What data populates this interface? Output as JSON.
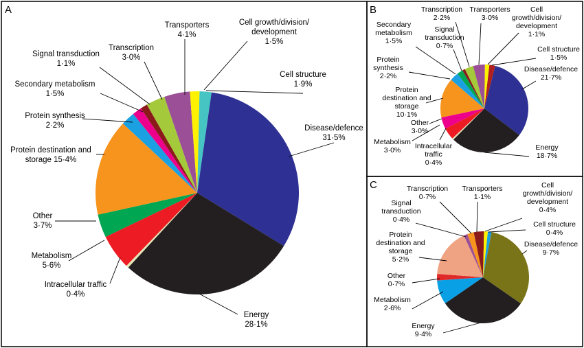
{
  "chart_data": [
    {
      "panel": "A",
      "type": "pie",
      "slices": [
        {
          "label": "Cell structure",
          "percent": "1·9%",
          "value": 1.9,
          "color": "#46c4c4",
          "text": [
            "Cell structure",
            "1·9%"
          ]
        },
        {
          "label": "Disease/defence",
          "percent": "31·5%",
          "value": 31.5,
          "color": "#2e3193",
          "text": [
            "Disease/defence",
            "31·5%"
          ]
        },
        {
          "label": "Energy",
          "percent": "28·1%",
          "value": 28.1,
          "color": "#231f20",
          "text": [
            "Energy",
            "28·1%"
          ]
        },
        {
          "label": "Intracellular traffic",
          "percent": "0·4%",
          "value": 0.4,
          "color": "#e4e6b5",
          "text": [
            "Intracellular traffic",
            "0·4%"
          ]
        },
        {
          "label": "Metabolism",
          "percent": "5·6%",
          "value": 5.6,
          "color": "#ed1c24",
          "text": [
            "Metabolism",
            "5·6%"
          ]
        },
        {
          "label": "Other",
          "percent": "3·7%",
          "value": 3.7,
          "color": "#00a651",
          "text": [
            "Other",
            "3·7%"
          ]
        },
        {
          "label": "Protein destination and storage",
          "percent": "15·4%",
          "value": 15.4,
          "color": "#f7941d",
          "text": [
            "Protein destination and",
            "storage 15·4%"
          ]
        },
        {
          "label": "Protein synthesis",
          "percent": "2·2%",
          "value": 2.2,
          "color": "#1ba0e2",
          "text": [
            "Protein synthesis",
            "2·2%"
          ]
        },
        {
          "label": "Secondary metabolism",
          "percent": "1·5%",
          "value": 1.5,
          "color": "#ec008c",
          "text": [
            "Secondary metabolism",
            "1·5%"
          ]
        },
        {
          "label": "Signal transduction",
          "percent": "1·1%",
          "value": 1.1,
          "color": "#8b1a1a",
          "text": [
            "Signal transduction",
            "1·1%"
          ]
        },
        {
          "label": "Transcription",
          "percent": "3·0%",
          "value": 3.0,
          "color": "#a4c93a",
          "text": [
            "Transcription",
            "3·0%"
          ]
        },
        {
          "label": "Transporters",
          "percent": "4·1%",
          "value": 4.1,
          "color": "#9b4f96",
          "text": [
            "Transporters",
            "4·1%"
          ]
        },
        {
          "label": "Cell growth/division/development",
          "percent": "1·5%",
          "value": 1.5,
          "color": "#fff200",
          "text": [
            "Cell growth/division/",
            "development",
            "1·5%"
          ]
        }
      ]
    },
    {
      "panel": "B",
      "type": "pie",
      "slices": [
        {
          "label": "Cell structure",
          "percent": "1·5%",
          "value": 1.5,
          "color": "#b02020",
          "text": [
            "Cell structure",
            "1·5%"
          ]
        },
        {
          "label": "Disease/defence",
          "percent": "21·7%",
          "value": 21.7,
          "color": "#2e3193",
          "text": [
            "Disease/defence",
            "21·7%"
          ]
        },
        {
          "label": "Energy",
          "percent": "18·7%",
          "value": 18.7,
          "color": "#231f20",
          "text": [
            "Energy",
            "18·7%"
          ]
        },
        {
          "label": "Intracellular traffic",
          "percent": "0·4%",
          "value": 0.4,
          "color": "#e4e6b5",
          "text": [
            "Intracellular",
            "traffic",
            "0·4%"
          ]
        },
        {
          "label": "Metabolism",
          "percent": "3·0%",
          "value": 3.0,
          "color": "#ed1c24",
          "text": [
            "Metabolism",
            "3·0%"
          ]
        },
        {
          "label": "Other",
          "percent": "3·0%",
          "value": 3.0,
          "color": "#ec008c",
          "text": [
            "Other",
            "3·0%"
          ]
        },
        {
          "label": "Protein destination and storage",
          "percent": "10·1%",
          "value": 10.1,
          "color": "#f7941d",
          "text": [
            "Protein",
            "destination and",
            "storage",
            "10·1%"
          ]
        },
        {
          "label": "Protein synthesis",
          "percent": "2·2%",
          "value": 2.2,
          "color": "#1ba0e2",
          "text": [
            "Protein",
            "synthesis",
            "2·2%"
          ]
        },
        {
          "label": "Secondary metabolism",
          "percent": "1·5%",
          "value": 1.5,
          "color": "#00a651",
          "text": [
            "Secondary",
            "metabolism",
            "1·5%"
          ]
        },
        {
          "label": "Signal transduction",
          "percent": "0·7%",
          "value": 0.7,
          "color": "#8b1a1a",
          "text": [
            "Signal",
            "transduction",
            "0·7%"
          ]
        },
        {
          "label": "Transcription",
          "percent": "2·2%",
          "value": 2.2,
          "color": "#a4c93a",
          "text": [
            "Transcription",
            "2·2%"
          ]
        },
        {
          "label": "Transporters",
          "percent": "3·0%",
          "value": 3.0,
          "color": "#9b4f96",
          "text": [
            "Transporters",
            "3·0%"
          ]
        },
        {
          "label": "Cell growth/division/development",
          "percent": "1·1%",
          "value": 1.1,
          "color": "#fff200",
          "text": [
            "Cell",
            "growth/division/",
            "development",
            "1·1%"
          ]
        }
      ]
    },
    {
      "panel": "C",
      "type": "pie",
      "slices": [
        {
          "label": "Cell structure",
          "percent": "0·4%",
          "value": 0.4,
          "color": "#1ba0e2",
          "text": [
            "Cell structure",
            "0·4%"
          ]
        },
        {
          "label": "Disease/defence",
          "percent": "9·7%",
          "value": 9.7,
          "color": "#7a7419",
          "text": [
            "Disease/defence",
            "9·7%"
          ]
        },
        {
          "label": "Energy",
          "percent": "9·4%",
          "value": 9.4,
          "color": "#231f20",
          "text": [
            "Energy",
            "9·4%"
          ]
        },
        {
          "label": "Metabolism",
          "percent": "2·6%",
          "value": 2.6,
          "color": "#0aa0e6",
          "text": [
            "Metabolism",
            "2·6%"
          ]
        },
        {
          "label": "Other",
          "percent": "0·7%",
          "value": 0.7,
          "color": "#e02a2a",
          "text": [
            "Other",
            "0·7%"
          ]
        },
        {
          "label": "Protein destination and storage",
          "percent": "5·2%",
          "value": 5.2,
          "color": "#f0a383",
          "text": [
            "Protein",
            "destination and",
            "storage",
            "5·2%"
          ]
        },
        {
          "label": "Signal transduction",
          "percent": "0·4%",
          "value": 0.4,
          "color": "#9b4f96",
          "text": [
            "Signal",
            "transduction",
            "0·4%"
          ]
        },
        {
          "label": "Transcription",
          "percent": "0·7%",
          "value": 0.7,
          "color": "#f7941d",
          "text": [
            "Transcription",
            "0·7%"
          ]
        },
        {
          "label": "Transporters",
          "percent": "1·1%",
          "value": 1.1,
          "color": "#8b1a1a",
          "text": [
            "Transporters",
            "1·1%"
          ]
        },
        {
          "label": "Cell growth/division/development",
          "percent": "0·4%",
          "value": 0.4,
          "color": "#fff200",
          "text": [
            "Cell",
            "growth/division/",
            "development",
            "0·4%"
          ]
        }
      ]
    }
  ],
  "panels": {
    "a": {
      "letter": "A"
    },
    "b": {
      "letter": "B"
    },
    "c": {
      "letter": "C"
    }
  }
}
